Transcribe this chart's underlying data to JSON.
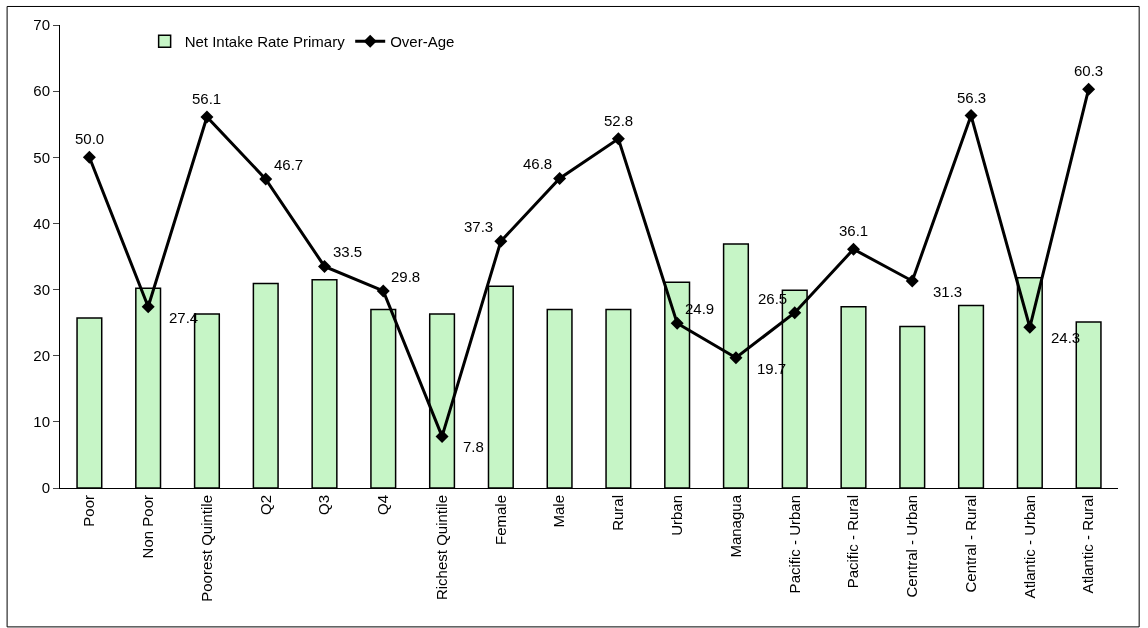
{
  "chart_data": {
    "type": "bar",
    "categories": [
      "Poor",
      "Non Poor",
      "Poorest Quintile",
      "Q2",
      "Q3",
      "Q4",
      "Richest Quintile",
      "Female",
      "Male",
      "Rural",
      "Urban",
      "Managua",
      "Pacific - Urban",
      "Pacific - Rural",
      "Central - Urban",
      "Central - Rural",
      "Atlantic - Urban",
      "Atlantic - Rural"
    ],
    "series": [
      {
        "name": "Net Intake Rate Primary",
        "color": "#c6f5c6",
        "values": [
          25.7,
          30.2,
          26.3,
          30.9,
          31.5,
          27.0,
          26.3,
          30.5,
          27.0,
          27.0,
          31.1,
          36.9,
          29.9,
          27.4,
          24.4,
          27.6,
          31.8,
          25.1
        ]
      },
      {
        "name": "Over-Age",
        "type": "line",
        "color": "#000000",
        "marker": "diamond",
        "values": [
          50.0,
          27.4,
          56.1,
          46.7,
          33.5,
          29.8,
          7.8,
          37.3,
          46.8,
          52.8,
          24.9,
          19.7,
          26.5,
          36.1,
          31.3,
          56.3,
          24.3,
          60.3
        ],
        "value_labels": [
          "50.0",
          "27.4",
          "56.1",
          "46.7",
          "33.5",
          "29.8",
          "7.8",
          "37.3",
          "46.8",
          "52.8",
          "24.9",
          "19.7",
          "26.5",
          "36.1",
          "31.3",
          "56.3",
          "24.3",
          "60.3"
        ]
      }
    ],
    "ylim": [
      0,
      70
    ],
    "yticks": [
      0,
      10,
      20,
      30,
      40,
      50,
      60,
      70
    ],
    "grid": false,
    "legend": "top left"
  }
}
